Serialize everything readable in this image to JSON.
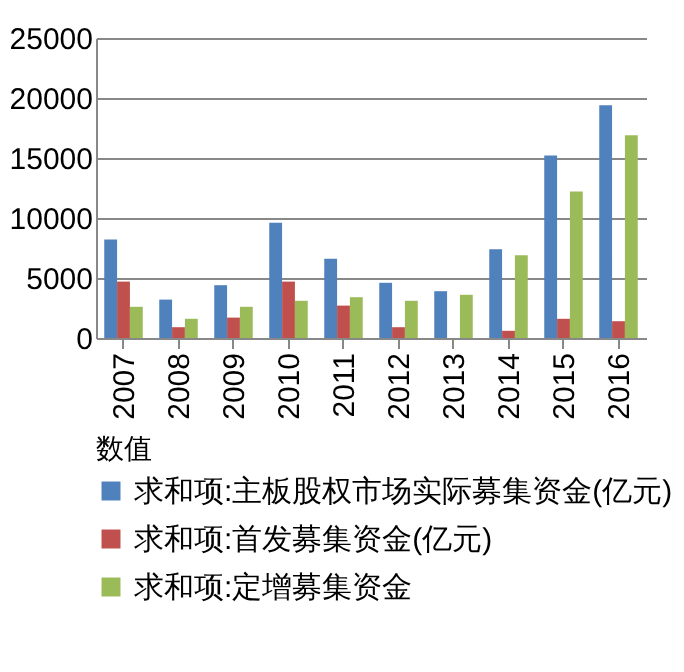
{
  "chart_data": {
    "type": "bar",
    "legend_title": "数值",
    "categories": [
      "2007",
      "2008",
      "2009",
      "2010",
      "2011",
      "2012",
      "2013",
      "2014",
      "2015",
      "2016"
    ],
    "series": [
      {
        "name": "求和项:主板股权市场实际募集资金(亿元)",
        "color": "#4f81bd",
        "values": [
          8200,
          3200,
          4400,
          9600,
          6600,
          4600,
          3900,
          7400,
          15200,
          19400
        ]
      },
      {
        "name": "求和项:首发募集资金(亿元)",
        "color": "#c0504d",
        "values": [
          4700,
          900,
          1700,
          4700,
          2700,
          900,
          null,
          600,
          1600,
          1400
        ]
      },
      {
        "name": "求和项:定增募集资金",
        "color": "#9bbb59",
        "values": [
          2600,
          1600,
          2600,
          3100,
          3400,
          3100,
          3600,
          6900,
          12200,
          16900
        ]
      }
    ],
    "ylim": [
      0,
      25000
    ],
    "yticks": [
      0,
      5000,
      10000,
      15000,
      20000,
      25000
    ],
    "grid": "y",
    "legend": "bottom"
  }
}
